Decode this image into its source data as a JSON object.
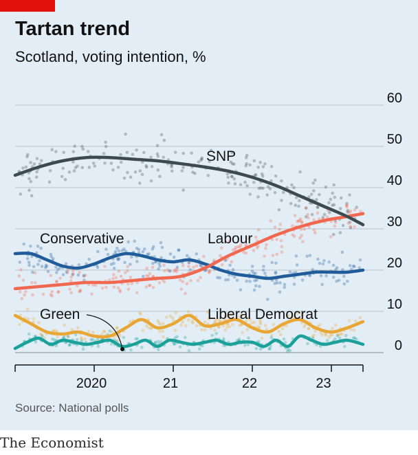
{
  "header": {
    "title": "Tartan trend",
    "subtitle": "Scotland, voting intention, %"
  },
  "footer": {
    "source": "Source: National polls",
    "brand": "The Economist"
  },
  "colors": {
    "SNP": "#3d4a52",
    "Labour": "#f0684f",
    "Conservative": "#1f5c99",
    "Liberal Democrat": "#e8a735",
    "Green": "#1ba19a",
    "grid": "#b9c4cc",
    "accent": "#e3120b"
  },
  "chart_data": {
    "type": "line",
    "title": "Tartan trend",
    "subtitle": "Scotland, voting intention, %",
    "xlabel": "",
    "ylabel": "",
    "ylim": [
      0,
      60
    ],
    "yticks": [
      0,
      10,
      20,
      30,
      40,
      50,
      60
    ],
    "xticks": [
      {
        "label": "2020",
        "x": 2020.5
      },
      {
        "label": "21",
        "x": 2021.5
      },
      {
        "label": "22",
        "x": 2022.5
      },
      {
        "label": "23",
        "x": 2023.4
      }
    ],
    "xlim": [
      2019.5,
      2023.9
    ],
    "grid": true,
    "legend": "direct labels",
    "series": [
      {
        "name": "SNP",
        "x": [
          2019.5,
          2019.8,
          2020.1,
          2020.4,
          2020.7,
          2021.0,
          2021.3,
          2021.6,
          2021.9,
          2022.2,
          2022.5,
          2022.8,
          2023.1,
          2023.4,
          2023.7,
          2023.9
        ],
        "values": [
          43,
          45,
          46.5,
          47.3,
          47.3,
          46.9,
          46.5,
          45.8,
          45,
          44,
          42.5,
          40.5,
          38,
          35.5,
          33,
          31
        ]
      },
      {
        "name": "Labour",
        "x": [
          2019.5,
          2019.8,
          2020.1,
          2020.4,
          2020.7,
          2021.0,
          2021.3,
          2021.6,
          2021.9,
          2022.2,
          2022.5,
          2022.8,
          2023.1,
          2023.4,
          2023.7,
          2023.9
        ],
        "values": [
          15.5,
          16,
          16.5,
          17,
          17,
          17.5,
          18,
          18.5,
          20.5,
          23.5,
          26,
          28.5,
          30.5,
          32,
          33,
          33.7
        ]
      },
      {
        "name": "Conservative",
        "x": [
          2019.5,
          2019.7,
          2019.9,
          2020.1,
          2020.3,
          2020.5,
          2020.7,
          2020.9,
          2021.1,
          2021.3,
          2021.5,
          2021.7,
          2021.9,
          2022.1,
          2022.3,
          2022.5,
          2022.7,
          2022.9,
          2023.1,
          2023.3,
          2023.5,
          2023.7,
          2023.9
        ],
        "values": [
          24,
          24,
          22.5,
          21,
          20.5,
          21.5,
          23,
          24,
          23.5,
          22.5,
          22,
          22.5,
          21.5,
          20,
          19,
          18.5,
          18,
          18.5,
          19,
          19.5,
          19.5,
          19.5,
          20
        ]
      },
      {
        "name": "Liberal Democrat",
        "x": [
          2019.5,
          2019.7,
          2019.9,
          2020.1,
          2020.3,
          2020.5,
          2020.7,
          2020.9,
          2021.1,
          2021.3,
          2021.5,
          2021.7,
          2021.9,
          2022.1,
          2022.3,
          2022.5,
          2022.7,
          2022.9,
          2023.1,
          2023.3,
          2023.5,
          2023.7,
          2023.9
        ],
        "values": [
          9,
          7,
          5,
          4.5,
          5,
          4,
          4,
          6,
          8,
          6,
          7,
          9,
          6.5,
          7,
          8,
          6,
          5,
          7,
          8,
          6,
          5,
          6,
          7.5
        ]
      },
      {
        "name": "Green",
        "x": [
          2019.5,
          2019.65,
          2019.8,
          2019.95,
          2020.1,
          2020.25,
          2020.4,
          2020.55,
          2020.7,
          2020.85,
          2021.0,
          2021.15,
          2021.3,
          2021.45,
          2021.6,
          2021.75,
          2021.9,
          2022.05,
          2022.2,
          2022.35,
          2022.5,
          2022.65,
          2022.8,
          2022.95,
          2023.1,
          2023.25,
          2023.4,
          2023.55,
          2023.7,
          2023.9
        ],
        "values": [
          1,
          2.5,
          3.5,
          2,
          3,
          2.5,
          2,
          2.5,
          3,
          1.5,
          2,
          3,
          1.5,
          3,
          2.5,
          2,
          2.5,
          3,
          2,
          2.5,
          2.5,
          1.5,
          3,
          1.5,
          4,
          3,
          2,
          2.5,
          3,
          2
        ]
      }
    ],
    "annotations": [
      {
        "text": "SNP",
        "series": "SNP"
      },
      {
        "text": "Conservative",
        "series": "Conservative"
      },
      {
        "text": "Labour",
        "series": "Labour"
      },
      {
        "text": "Green",
        "series": "Green"
      },
      {
        "text": "Liberal Democrat",
        "series": "Liberal Democrat"
      }
    ]
  }
}
